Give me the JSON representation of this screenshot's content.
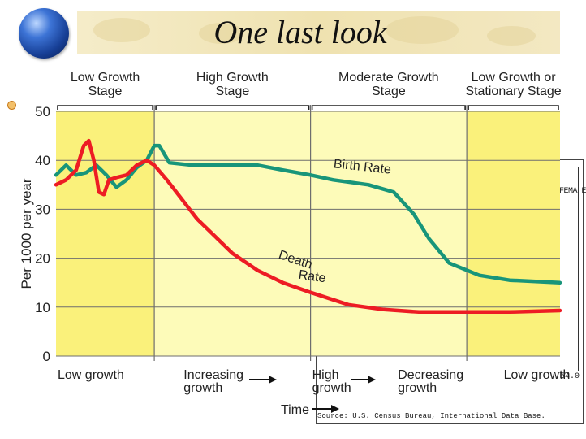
{
  "slide": {
    "title": "One last look",
    "overlay_note": "FEMA_E",
    "overlay_corner": "54.0",
    "overlay_footer": "Source: U.S. Census Bureau, International Data Base."
  },
  "colors": {
    "stage_dark": "#faf17b",
    "stage_light": "#fdfbb9",
    "birth": "#18957a",
    "death": "#ed1c24"
  },
  "chart_data": {
    "type": "line",
    "title": "",
    "xlabel": "Time",
    "ylabel": "Per 1000 per year",
    "ylim": [
      0,
      50
    ],
    "yticks": [
      0,
      10,
      20,
      30,
      40,
      50
    ],
    "xlim": [
      0,
      100
    ],
    "grid": true,
    "stages": [
      {
        "label_line1": "Low Growth",
        "label_line2": "Stage",
        "x_start": 0,
        "x_end": 19.5,
        "shade": "dark"
      },
      {
        "label_line1": "High Growth",
        "label_line2": "Stage",
        "x_start": 19.5,
        "x_end": 50.5,
        "shade": "light"
      },
      {
        "label_line1": "Moderate Growth",
        "label_line2": "Stage",
        "x_start": 50.5,
        "x_end": 81.5,
        "shade": "light"
      },
      {
        "label_line1": "Low Growth or",
        "label_line2": "Stationary Stage",
        "x_start": 81.5,
        "x_end": 100,
        "shade": "dark"
      }
    ],
    "bottom_labels": [
      {
        "line1": "Low growth",
        "line2": "",
        "x": 0
      },
      {
        "line1": "Increasing",
        "line2": "growth",
        "x": 25
      },
      {
        "line1": "High",
        "line2": "growth",
        "x": 50.5
      },
      {
        "line1": "Decreasing",
        "line2": "growth",
        "x": 67.5
      },
      {
        "line1": "Low growth",
        "line2": "",
        "x": 88.5
      }
    ],
    "series": [
      {
        "name": "Birth Rate",
        "label_line1": "Birth Rate",
        "label_x": 55,
        "label_y": 38.5,
        "values": [
          [
            0,
            37
          ],
          [
            2,
            39
          ],
          [
            4,
            37
          ],
          [
            6,
            37.5
          ],
          [
            8,
            39
          ],
          [
            10,
            37
          ],
          [
            12,
            34.5
          ],
          [
            14,
            36
          ],
          [
            16,
            38.5
          ],
          [
            18,
            40
          ],
          [
            19.5,
            43
          ],
          [
            20.5,
            43
          ],
          [
            22.5,
            39.5
          ],
          [
            27,
            39
          ],
          [
            35,
            39
          ],
          [
            40,
            39
          ],
          [
            45,
            38
          ],
          [
            50.5,
            37
          ],
          [
            55,
            36
          ],
          [
            62,
            35
          ],
          [
            67,
            33.5
          ],
          [
            71,
            29
          ],
          [
            74,
            24
          ],
          [
            78,
            19
          ],
          [
            84,
            16.5
          ],
          [
            90,
            15.5
          ],
          [
            100,
            15
          ]
        ]
      },
      {
        "name": "Death Rate",
        "label_line1": "Death",
        "label_line2": "Rate",
        "label_x": 44,
        "label_y": 19,
        "values": [
          [
            0,
            35
          ],
          [
            2,
            36
          ],
          [
            4,
            38
          ],
          [
            5.5,
            43
          ],
          [
            6.5,
            44
          ],
          [
            7.5,
            40
          ],
          [
            8.5,
            33.5
          ],
          [
            9.5,
            33
          ],
          [
            10.5,
            36
          ],
          [
            12,
            36.5
          ],
          [
            14,
            37
          ],
          [
            16,
            39
          ],
          [
            18,
            40
          ],
          [
            19.5,
            39
          ],
          [
            22,
            36
          ],
          [
            28,
            28
          ],
          [
            35,
            21
          ],
          [
            40,
            17.5
          ],
          [
            45,
            15
          ],
          [
            50.5,
            13
          ],
          [
            58,
            10.5
          ],
          [
            65,
            9.5
          ],
          [
            72,
            9
          ],
          [
            81.5,
            9
          ],
          [
            90,
            9
          ],
          [
            100,
            9.3
          ]
        ]
      }
    ]
  }
}
